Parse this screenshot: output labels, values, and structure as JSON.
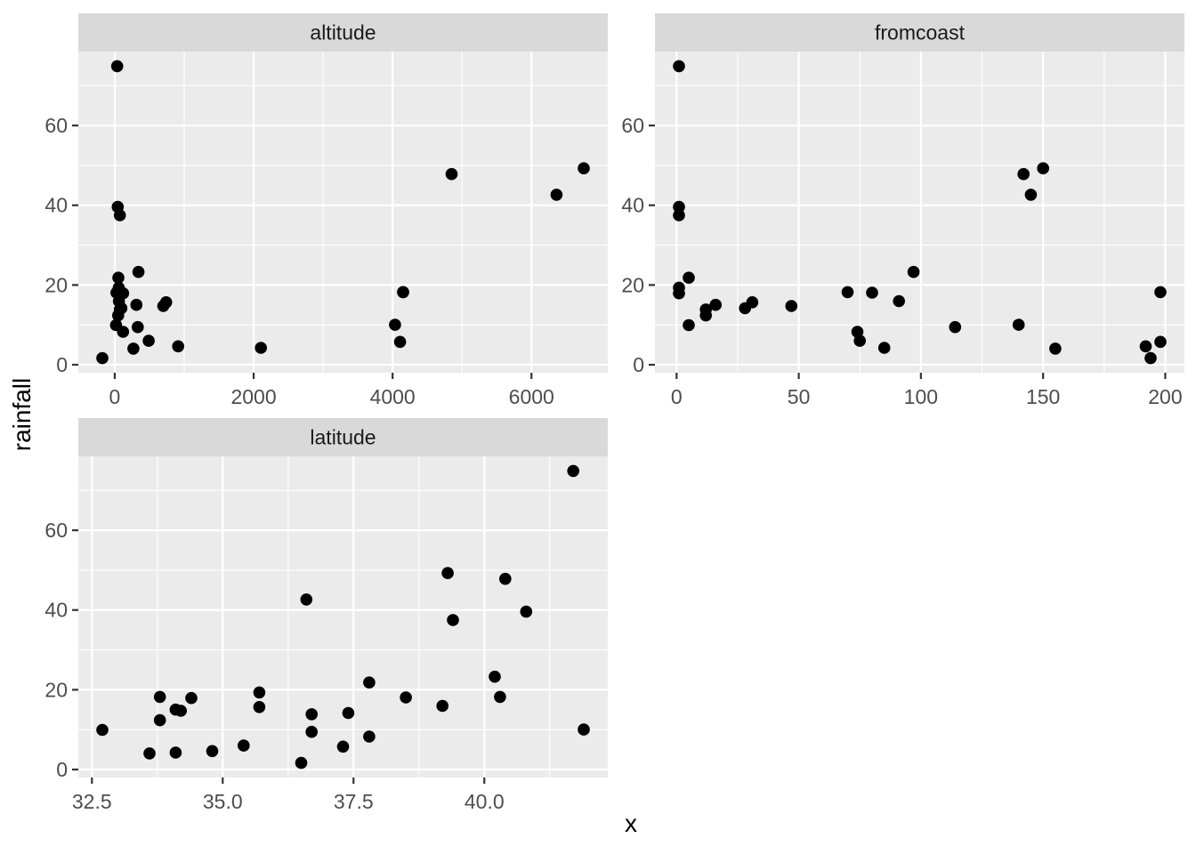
{
  "figure": {
    "kind": "ggplot-faceted-scatter",
    "background": "#ffffff"
  },
  "colors": {
    "panel_background": "#ebebeb",
    "strip_background": "#d9d9d9",
    "gridline": "#ffffff",
    "point": "#000000",
    "tick_mark": "#333333",
    "axis_text": "#4d4d4d",
    "strip_text": "#1a1a1a",
    "axis_title_text": "#000000"
  },
  "chart_data": {
    "type": "scatter",
    "x_title": "x",
    "y_title": "rainfall",
    "legend": "none",
    "grid": "on",
    "facets": [
      {
        "label": "altitude",
        "x_key": "altitude",
        "col": 0,
        "row": 0,
        "x_range": [
          -524.5,
          7098.5
        ],
        "x_tick_values": [
          0,
          2000,
          4000,
          6000
        ],
        "x_tick_labels": [
          "0",
          "2000",
          "4000",
          "6000"
        ],
        "x_minor": [
          1000,
          3000,
          5000
        ]
      },
      {
        "label": "fromcoast",
        "x_key": "fromcoast",
        "col": 1,
        "row": 0,
        "x_range": [
          -8.85,
          207.85
        ],
        "x_tick_values": [
          0,
          50,
          100,
          150,
          200
        ],
        "x_tick_labels": [
          "0",
          "50",
          "100",
          "150",
          "200"
        ],
        "x_minor": [
          25,
          75,
          125,
          175
        ]
      },
      {
        "label": "latitude",
        "x_key": "latitude",
        "col": 0,
        "row": 1,
        "x_range": [
          32.24,
          42.36
        ],
        "x_tick_values": [
          32.5,
          35.0,
          37.5,
          40.0
        ],
        "x_tick_labels": [
          "32.5",
          "35.0",
          "37.5",
          "40.0"
        ],
        "x_minor": [
          33.75,
          36.25,
          38.75,
          41.25
        ]
      }
    ],
    "y_axis": {
      "range": [
        -2.0,
        78.53
      ],
      "tick_values": [
        0,
        20,
        40,
        60
      ],
      "tick_labels": [
        "0",
        "20",
        "40",
        "60"
      ],
      "minor": [
        10,
        30,
        50,
        70
      ]
    },
    "points": {
      "rainfall": [
        39.57,
        23.27,
        18.2,
        37.48,
        49.26,
        21.82,
        18.07,
        14.17,
        42.63,
        13.85,
        9.44,
        19.33,
        15.67,
        6.0,
        5.73,
        47.82,
        17.93,
        18.2,
        10.03,
        4.63,
        14.74,
        15.02,
        12.36,
        8.26,
        4.05,
        9.94,
        4.25,
        1.66,
        74.87,
        15.95
      ],
      "altitude": [
        43,
        341,
        4152,
        74,
        6752,
        52,
        25,
        95,
        6360,
        74,
        331,
        57,
        740,
        489,
        4108,
        4850,
        120,
        4152,
        4035,
        913,
        699,
        312,
        50,
        120,
        268,
        19,
        2105,
        -178,
        35,
        60
      ],
      "fromcoast": [
        1,
        97,
        70,
        1,
        150,
        5,
        80,
        28,
        145,
        12,
        114,
        1,
        31,
        75,
        198,
        142,
        1,
        198,
        140,
        192,
        47,
        16,
        12,
        74,
        155,
        5,
        85,
        194,
        1,
        91
      ],
      "latitude": [
        40.8,
        40.2,
        33.8,
        39.4,
        39.3,
        37.8,
        38.5,
        37.4,
        36.6,
        36.7,
        36.7,
        35.7,
        35.7,
        35.4,
        37.3,
        40.4,
        34.4,
        40.3,
        41.9,
        34.8,
        34.2,
        34.1,
        33.8,
        37.8,
        33.6,
        32.7,
        34.1,
        36.5,
        41.7,
        39.2
      ]
    }
  }
}
